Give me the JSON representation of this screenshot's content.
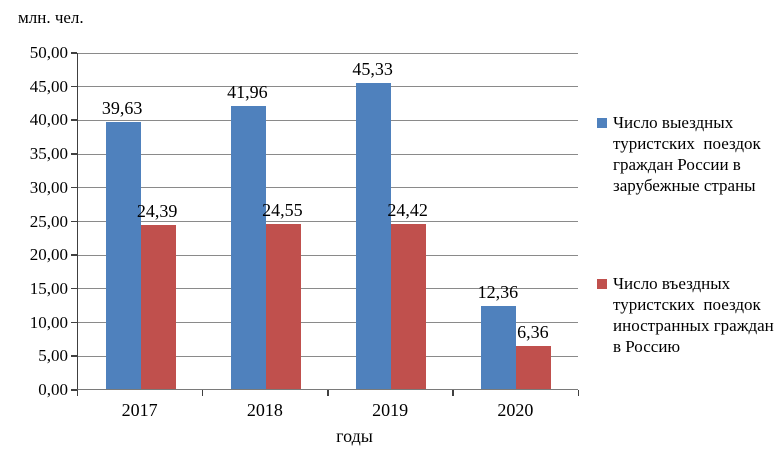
{
  "chart_data": {
    "type": "bar",
    "unit_label": "млн. чел.",
    "xlabel": "годы",
    "categories": [
      "2017",
      "2018",
      "2019",
      "2020"
    ],
    "series": [
      {
        "name": "Число выездных туристских поездок граждан России в зарубежные страны",
        "name_lines": [
          "Число выездных",
          "туристских  поездок",
          "граждан России в",
          "зарубежные страны"
        ],
        "color": "#4F81BD",
        "values": [
          39.63,
          41.96,
          45.33,
          12.36
        ],
        "labels": [
          "39,63",
          "41,96",
          "45,33",
          "12,36"
        ]
      },
      {
        "name": "Число въездных туристских поездок иностранных граждан в Россию",
        "name_lines": [
          "Число въездных",
          "туристских  поездок",
          "иностранных граждан",
          "в Россию"
        ],
        "color": "#C0504D",
        "values": [
          24.39,
          24.55,
          24.42,
          6.36
        ],
        "labels": [
          "24,39",
          "24,55",
          "24,42",
          "6,36"
        ]
      }
    ],
    "y_axis": {
      "min": 0,
      "max": 50,
      "step": 5,
      "tick_labels": [
        "0,00",
        "5,00",
        "10,00",
        "15,00",
        "20,00",
        "25,00",
        "30,00",
        "35,00",
        "40,00",
        "45,00",
        "50,00"
      ]
    },
    "legend_position": "right",
    "grid": true,
    "colors": {
      "grid": "#8A8A8A",
      "axis": "#404040",
      "series_outbound": "#4F81BD",
      "series_inbound": "#C0504D"
    }
  }
}
